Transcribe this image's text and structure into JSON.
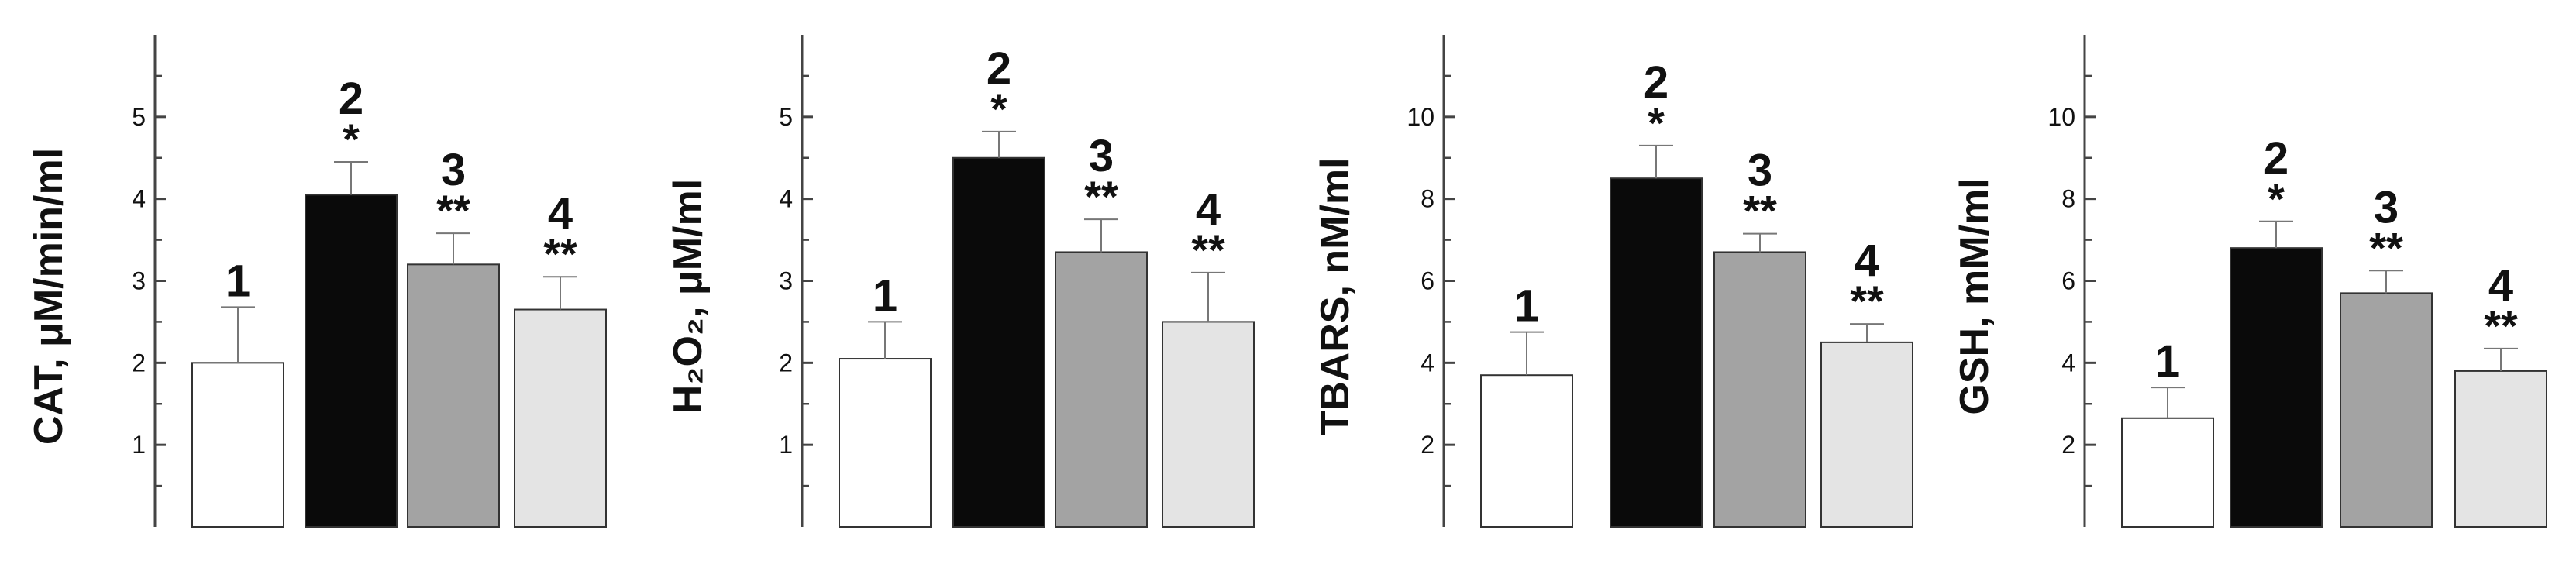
{
  "colors": {
    "axis": "#444444",
    "bar_outline": "#333333"
  },
  "chart_data": [
    {
      "type": "bar",
      "ylabel": "CAT, μM/min/ml",
      "ylim": [
        0,
        6
      ],
      "ticks": [
        1,
        2,
        3,
        4,
        5
      ],
      "categories": [
        "1",
        "2",
        "3",
        "4"
      ],
      "values": [
        2.0,
        4.05,
        3.2,
        2.65
      ],
      "errors": [
        0.68,
        0.4,
        0.38,
        0.4
      ],
      "significance": [
        "",
        "*",
        "**",
        "**"
      ],
      "bar_colors": [
        "#ffffff",
        "#0a0a0a",
        "#a3a3a3",
        "#e4e4e4"
      ]
    },
    {
      "type": "bar",
      "ylabel": "H₂O₂, μM/ml",
      "ylim": [
        0,
        6
      ],
      "ticks": [
        1,
        2,
        3,
        4,
        5
      ],
      "categories": [
        "1",
        "2",
        "3",
        "4"
      ],
      "values": [
        2.05,
        4.5,
        3.35,
        2.5
      ],
      "errors": [
        0.45,
        0.32,
        0.4,
        0.6
      ],
      "significance": [
        "",
        "*",
        "**",
        "**"
      ],
      "bar_colors": [
        "#ffffff",
        "#0a0a0a",
        "#a3a3a3",
        "#e4e4e4"
      ]
    },
    {
      "type": "bar",
      "ylabel": "TBARS, nM/ml",
      "ylim": [
        0,
        12
      ],
      "ticks": [
        2,
        4,
        6,
        8,
        10
      ],
      "categories": [
        "1",
        "2",
        "3",
        "4"
      ],
      "values": [
        3.7,
        8.5,
        6.7,
        4.5
      ],
      "errors": [
        1.05,
        0.8,
        0.45,
        0.45
      ],
      "significance": [
        "",
        "*",
        "**",
        "**"
      ],
      "bar_colors": [
        "#ffffff",
        "#0a0a0a",
        "#a3a3a3",
        "#e4e4e4"
      ]
    },
    {
      "type": "bar",
      "ylabel": "GSH, mM/ml",
      "ylim": [
        0,
        12
      ],
      "ticks": [
        2,
        4,
        6,
        8,
        10
      ],
      "categories": [
        "1",
        "2",
        "3",
        "4"
      ],
      "values": [
        2.65,
        6.8,
        5.7,
        3.8
      ],
      "errors": [
        0.75,
        0.65,
        0.55,
        0.55
      ],
      "significance": [
        "",
        "*",
        "**",
        "**"
      ],
      "bar_colors": [
        "#ffffff",
        "#0a0a0a",
        "#a3a3a3",
        "#e4e4e4"
      ]
    }
  ]
}
